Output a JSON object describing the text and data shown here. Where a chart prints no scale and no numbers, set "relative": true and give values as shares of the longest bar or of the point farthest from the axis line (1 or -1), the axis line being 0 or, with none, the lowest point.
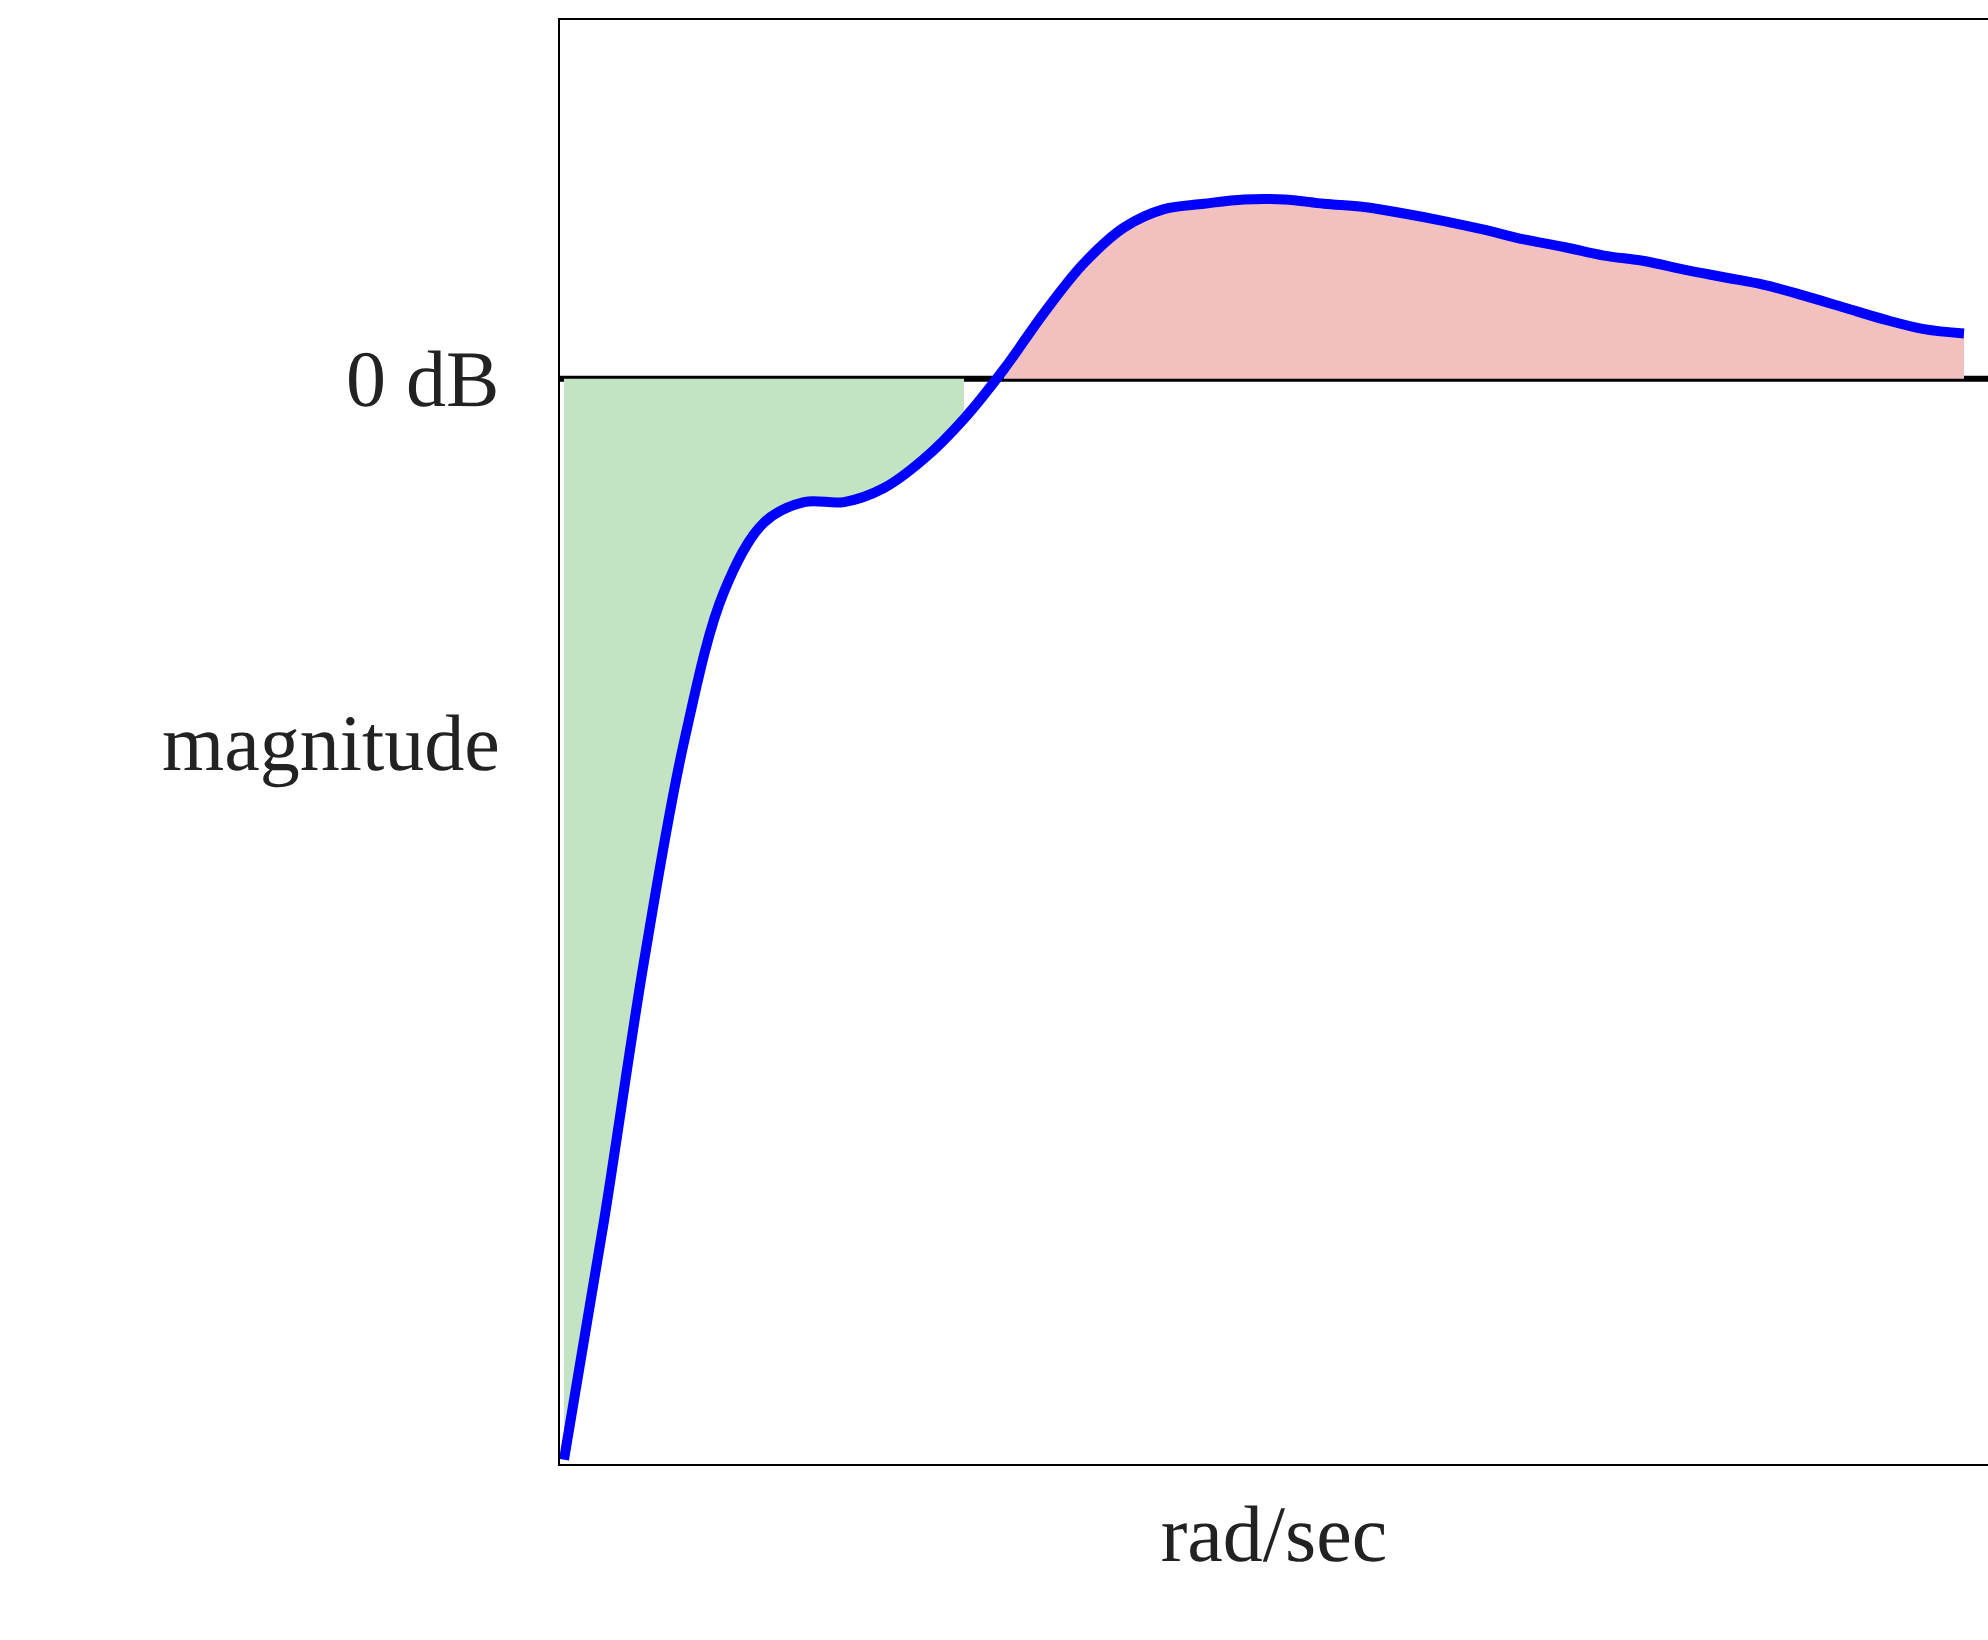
{
  "chart_data": {
    "type": "line",
    "relative": true,
    "xlabel": "rad/sec",
    "ylabel": "magnitude",
    "categories": [
      null,
      null,
      null,
      null,
      null,
      null,
      null,
      null,
      null,
      null,
      null,
      null,
      null,
      null,
      null,
      null,
      null,
      null,
      null,
      null,
      null,
      null,
      null,
      null,
      null,
      null,
      null,
      null,
      null,
      null,
      null,
      null,
      null,
      null,
      null,
      null
    ],
    "series": [
      {
        "type": "area",
        "color": "#c2e4c2",
        "values": [
          -1,
          -0.779,
          -0.539,
          -0.336,
          -0.197,
          -0.133,
          -0.114,
          -0.114,
          -0.101,
          -0.074,
          -0.037,
          null,
          null,
          null,
          null,
          null,
          null,
          null,
          null,
          null,
          null,
          null,
          null,
          null,
          null,
          null,
          null,
          null,
          null,
          null,
          null,
          null,
          null,
          null,
          null,
          null
        ]
      },
      {
        "type": "area",
        "color": "#f3c0c0",
        "values": [
          null,
          null,
          null,
          null,
          null,
          null,
          null,
          null,
          null,
          null,
          null,
          0.009,
          0.061,
          0.107,
          0.14,
          0.157,
          0.162,
          0.166,
          0.166,
          0.162,
          0.159,
          0.153,
          0.146,
          0.138,
          0.129,
          0.122,
          0.114,
          0.109,
          0.101,
          0.094,
          0.087,
          0.077,
          0.066,
          0.055,
          0.046,
          0.042
        ]
      },
      {
        "color": "#0000ff",
        "values": [
          -1,
          -0.779,
          -0.539,
          -0.336,
          -0.197,
          -0.133,
          -0.114,
          -0.114,
          -0.101,
          -0.074,
          -0.037,
          0.009,
          0.061,
          0.107,
          0.14,
          0.157,
          0.162,
          0.166,
          0.166,
          0.162,
          0.159,
          0.153,
          0.146,
          0.138,
          0.129,
          0.122,
          0.114,
          0.109,
          0.101,
          0.094,
          0.087,
          0.077,
          0.066,
          0.055,
          0.046,
          0.042
        ]
      }
    ],
    "ref_lines": [
      {
        "axis": "y",
        "value": 0,
        "label": "0 dB",
        "color": "#000000"
      }
    ],
    "grid": false
  }
}
